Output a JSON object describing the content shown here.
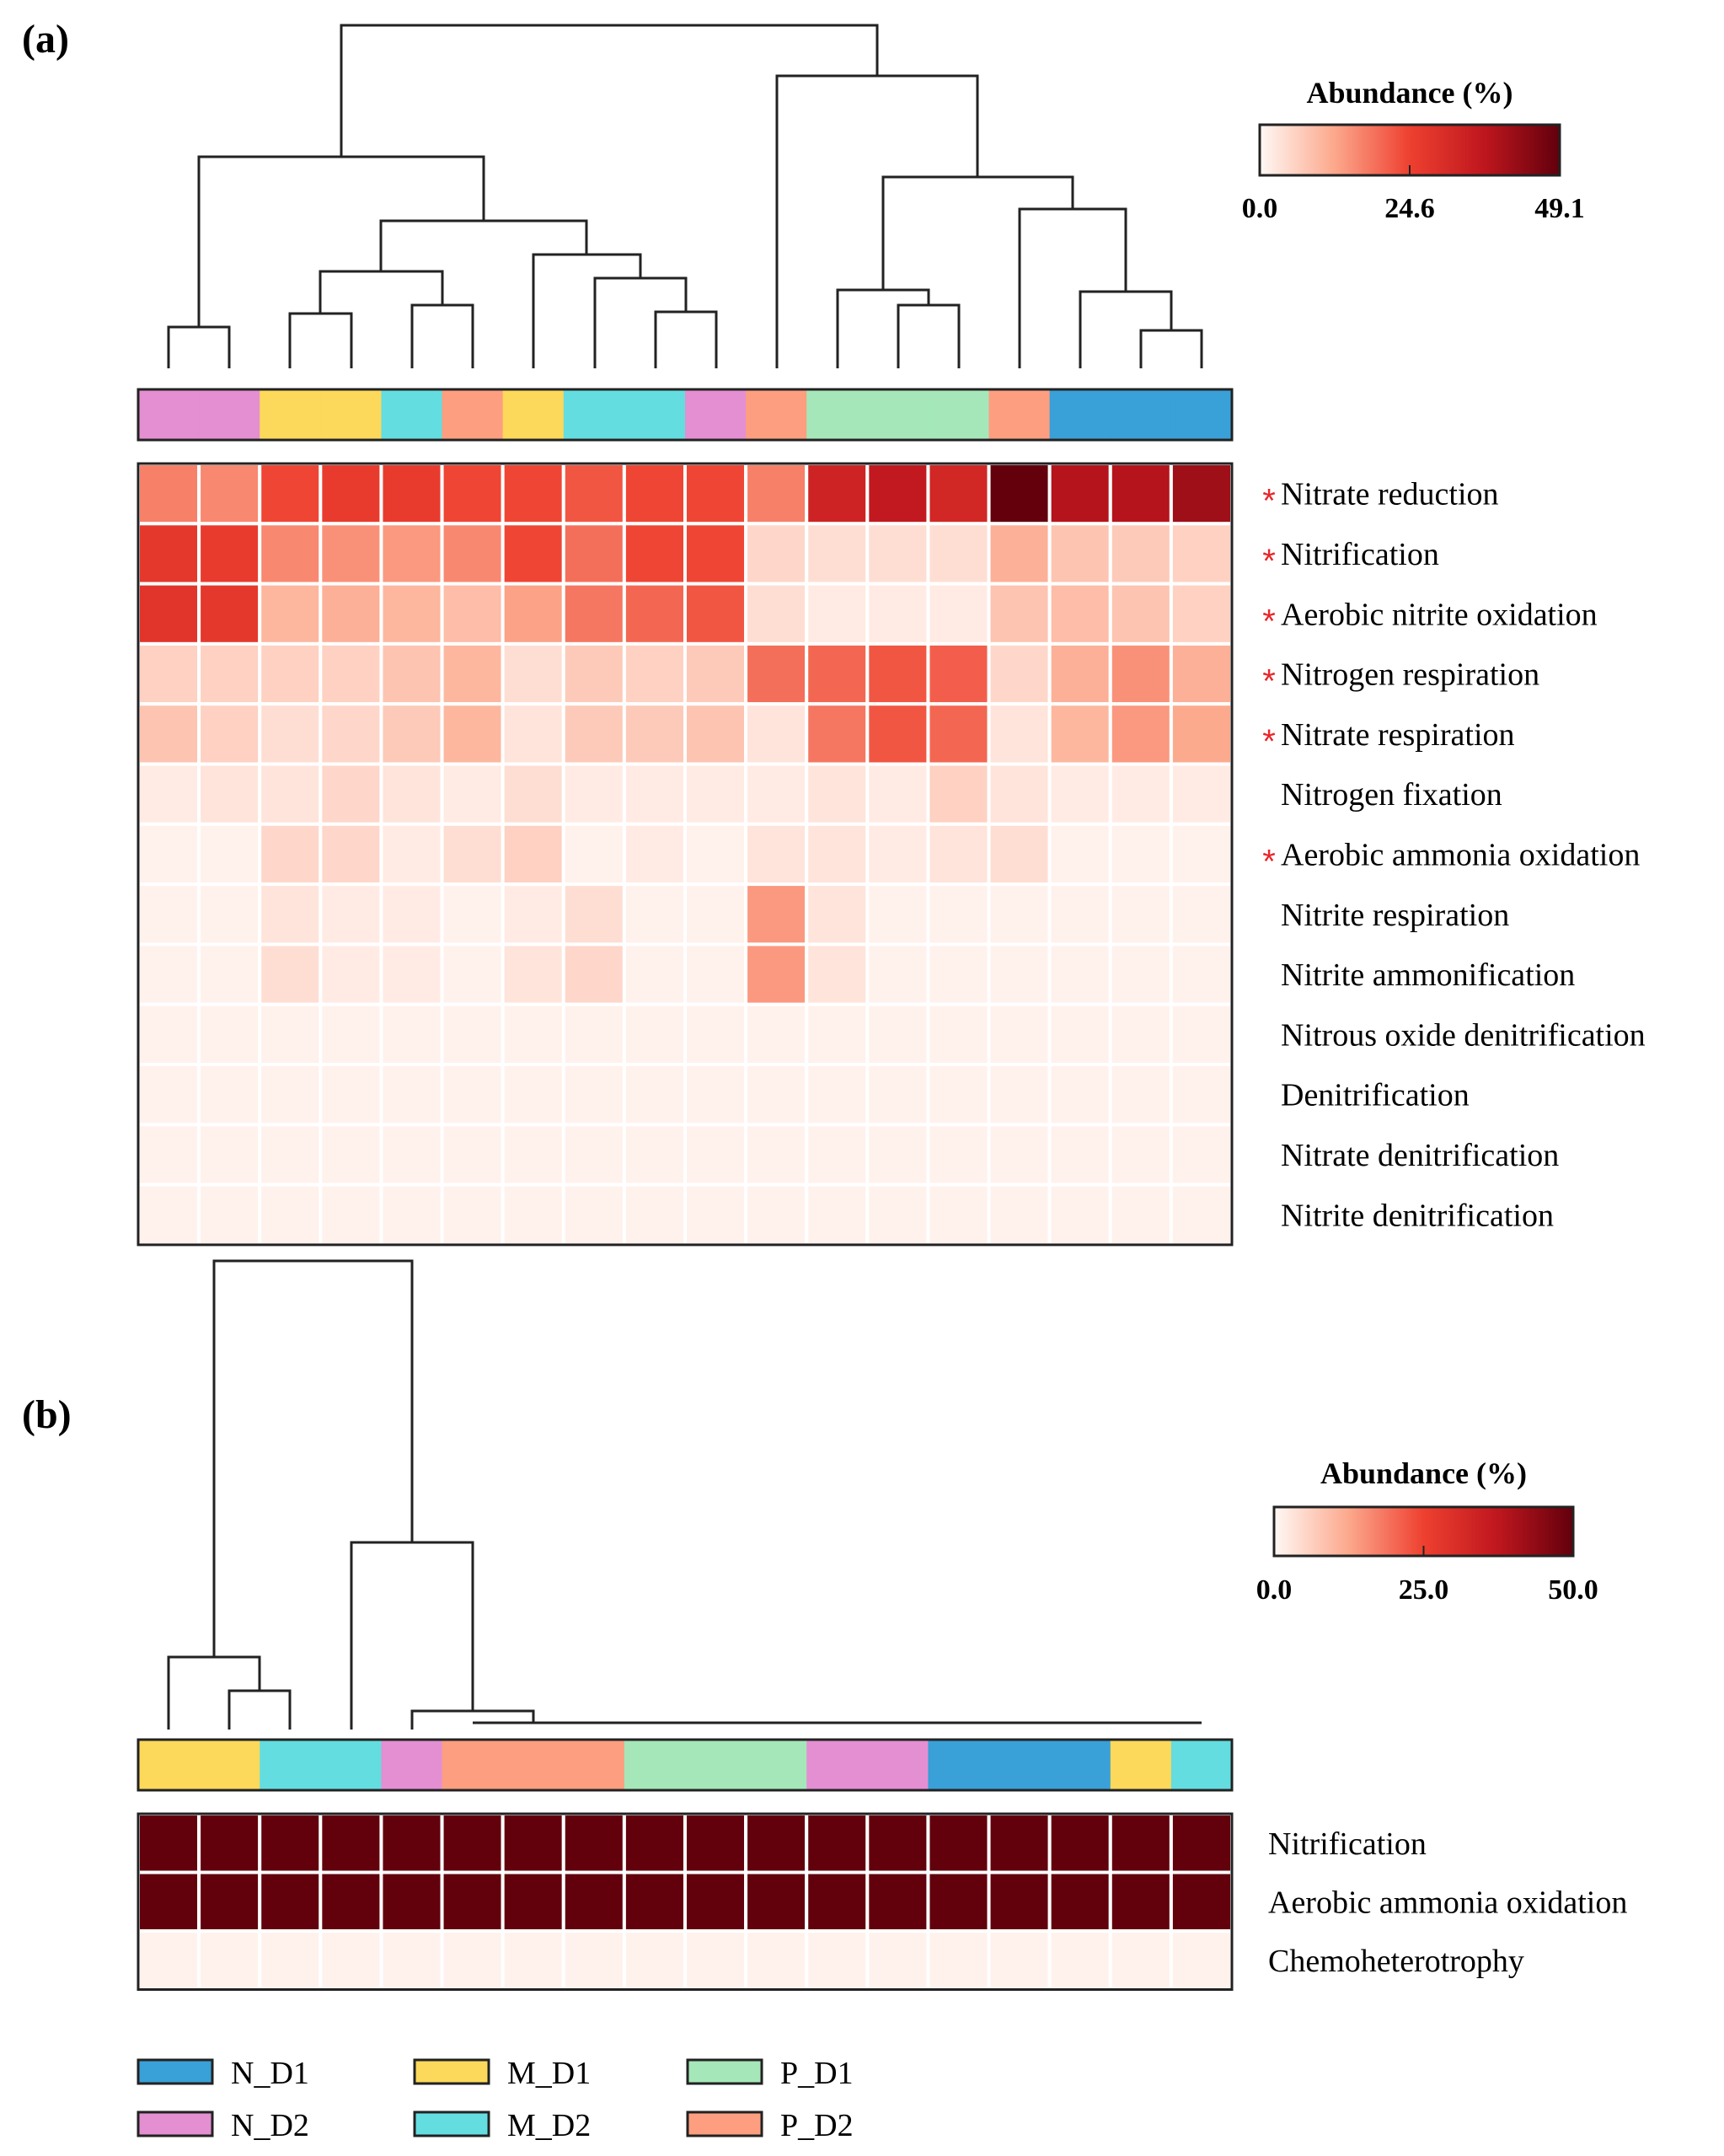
{
  "colors": {
    "N_D1": "#39a0d8",
    "N_D2": "#e38fd2",
    "M_D1": "#fcd95a",
    "M_D2": "#64dde0",
    "P_D1": "#a5e7b9",
    "P_D2": "#fd9e80"
  },
  "legend": {
    "items": [
      {
        "label": "N_D1",
        "group": "N_D1"
      },
      {
        "label": "M_D1",
        "group": "M_D1"
      },
      {
        "label": "P_D1",
        "group": "P_D1"
      },
      {
        "label": "N_D2",
        "group": "N_D2"
      },
      {
        "label": "M_D2",
        "group": "M_D2"
      },
      {
        "label": "P_D2",
        "group": "P_D2"
      }
    ]
  },
  "chart_data": [
    {
      "type": "heatmap",
      "panel_label": "(a)",
      "colorbar": {
        "title": "Abundance (%)",
        "min": 0.0,
        "max": 49.1,
        "ticks": [
          "0.0",
          "24.6",
          "49.1"
        ]
      },
      "column_groups": [
        "N_D2",
        "N_D2",
        "M_D1",
        "M_D1",
        "M_D2",
        "P_D2",
        "M_D1",
        "M_D2",
        "M_D2",
        "N_D2",
        "P_D2",
        "P_D1",
        "P_D1",
        "P_D1",
        "P_D2",
        "N_D1",
        "N_D1",
        "N_D1"
      ],
      "rows": [
        {
          "label": "Nitrate reduction",
          "star": true
        },
        {
          "label": "Nitrification",
          "star": true
        },
        {
          "label": "Aerobic nitrite oxidation",
          "star": true
        },
        {
          "label": "Nitrogen respiration",
          "star": true
        },
        {
          "label": "Nitrate respiration",
          "star": true
        },
        {
          "label": "Nitrogen fixation",
          "star": false
        },
        {
          "label": "Aerobic ammonia oxidation",
          "star": true
        },
        {
          "label": "Nitrite respiration",
          "star": false
        },
        {
          "label": "Nitrite ammonification",
          "star": false
        },
        {
          "label": "Nitrous oxide denitrification",
          "star": false
        },
        {
          "label": "Denitrification",
          "star": false
        },
        {
          "label": "Nitrate denitrification",
          "star": false
        },
        {
          "label": "Nitrite denitrification",
          "star": false
        }
      ],
      "values": [
        [
          17,
          16,
          24,
          26,
          26,
          24,
          24,
          22,
          24,
          24,
          17,
          33,
          36,
          32,
          49,
          38,
          38,
          41
        ],
        [
          27,
          26,
          16,
          15,
          14,
          16,
          24,
          19,
          24,
          24,
          5,
          4,
          4,
          4,
          11,
          8,
          7,
          6
        ],
        [
          28,
          27,
          10,
          11,
          10,
          9,
          13,
          18,
          20,
          22,
          4,
          2,
          2,
          2,
          8,
          9,
          8,
          6
        ],
        [
          6,
          6,
          6,
          6,
          8,
          10,
          4,
          7,
          6,
          7,
          19,
          20,
          22,
          21,
          5,
          11,
          15,
          11
        ],
        [
          8,
          6,
          4,
          5,
          7,
          10,
          3,
          7,
          7,
          8,
          3,
          18,
          22,
          20,
          3,
          10,
          14,
          12
        ],
        [
          2,
          3,
          3,
          5,
          3,
          2,
          4,
          2,
          2,
          2,
          2,
          3,
          2,
          6,
          3,
          2,
          2,
          2
        ],
        [
          1,
          1,
          5,
          5,
          2,
          4,
          6,
          1,
          2,
          1,
          3,
          3,
          2,
          3,
          4,
          1,
          1,
          1
        ],
        [
          1,
          1,
          3,
          2,
          2,
          1,
          2,
          4,
          1,
          1,
          14,
          3,
          1,
          1,
          1,
          1,
          1,
          1
        ],
        [
          1,
          1,
          4,
          2,
          2,
          1,
          3,
          5,
          1,
          1,
          14,
          3,
          1,
          1,
          1,
          1,
          1,
          1
        ],
        [
          1,
          1,
          1,
          1,
          1,
          1,
          1,
          1,
          1,
          1,
          1,
          1,
          1,
          1,
          1,
          1,
          1,
          1
        ],
        [
          1,
          1,
          1,
          1,
          1,
          1,
          1,
          1,
          1,
          1,
          1,
          1,
          1,
          1,
          1,
          1,
          1,
          1
        ],
        [
          1,
          1,
          1,
          1,
          1,
          1,
          1,
          1,
          1,
          1,
          1,
          1,
          1,
          1,
          1,
          1,
          1,
          1
        ],
        [
          1,
          1,
          1,
          1,
          1,
          1,
          1,
          1,
          1,
          1,
          1,
          1,
          1,
          1,
          1,
          1,
          1,
          1
        ]
      ]
    },
    {
      "type": "heatmap",
      "panel_label": "(b)",
      "colorbar": {
        "title": "Abundance (%)",
        "min": 0.0,
        "max": 50.0,
        "ticks": [
          "0.0",
          "25.0",
          "50.0"
        ]
      },
      "column_groups": [
        "M_D1",
        "M_D1",
        "M_D2",
        "M_D2",
        "N_D2",
        "P_D2",
        "P_D2",
        "P_D2",
        "P_D1",
        "P_D1",
        "P_D1",
        "N_D2",
        "N_D2",
        "N_D1",
        "N_D1",
        "N_D1",
        "M_D1",
        "M_D2"
      ],
      "rows": [
        {
          "label": "Nitrification",
          "star": false
        },
        {
          "label": "Aerobic ammonia oxidation",
          "star": false
        },
        {
          "label": "Chemoheterotrophy",
          "star": false
        }
      ],
      "values": [
        [
          50,
          50,
          50,
          50,
          50,
          50,
          50,
          50,
          50,
          50,
          50,
          50,
          50,
          50,
          50,
          50,
          50,
          50
        ],
        [
          50,
          50,
          50,
          50,
          50,
          50,
          50,
          50,
          50,
          50,
          50,
          50,
          50,
          50,
          50,
          50,
          50,
          50
        ],
        [
          1,
          1,
          1,
          1,
          1,
          1,
          1,
          1,
          1,
          1,
          1,
          1,
          1,
          1,
          1,
          1,
          1,
          1
        ]
      ]
    }
  ]
}
